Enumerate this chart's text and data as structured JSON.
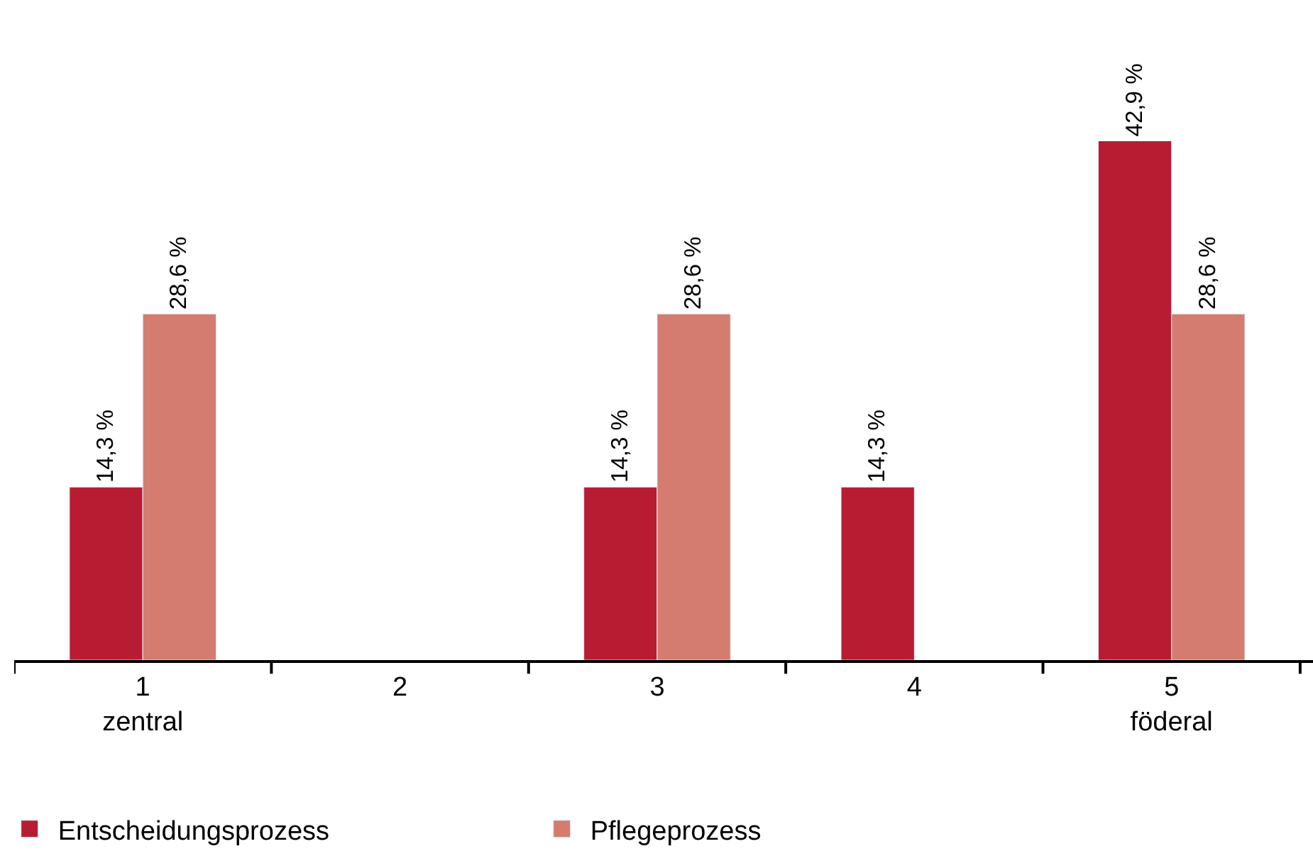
{
  "chart_data": {
    "type": "bar",
    "categories": [
      "1\nzentral",
      "2",
      "3",
      "4",
      "5\nföderal"
    ],
    "series": [
      {
        "name": "Entscheidungsprozess",
        "color": "#b71c32",
        "values": [
          14.3,
          null,
          14.3,
          14.3,
          42.9
        ],
        "value_labels": [
          "14,3 %",
          null,
          "14,3 %",
          "14,3 %",
          "42,9 %"
        ]
      },
      {
        "name": "Pflegeprozess",
        "color": "#d47c70",
        "values": [
          28.6,
          null,
          28.6,
          null,
          28.6
        ],
        "value_labels": [
          "28,6 %",
          null,
          "28,6 %",
          null,
          "28,6 %"
        ]
      }
    ],
    "legend": "bottom left"
  }
}
